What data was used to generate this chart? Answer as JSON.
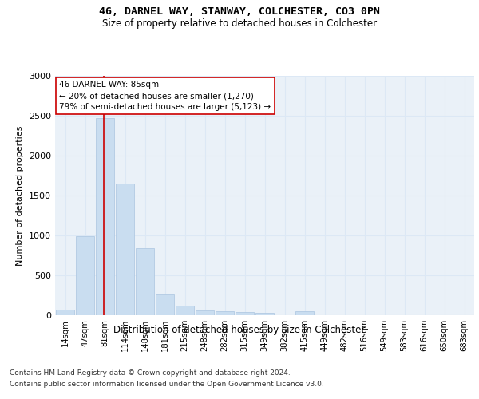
{
  "title1": "46, DARNEL WAY, STANWAY, COLCHESTER, CO3 0PN",
  "title2": "Size of property relative to detached houses in Colchester",
  "xlabel": "Distribution of detached houses by size in Colchester",
  "ylabel": "Number of detached properties",
  "bar_labels": [
    "14sqm",
    "47sqm",
    "81sqm",
    "114sqm",
    "148sqm",
    "181sqm",
    "215sqm",
    "248sqm",
    "282sqm",
    "315sqm",
    "349sqm",
    "382sqm",
    "415sqm",
    "449sqm",
    "482sqm",
    "516sqm",
    "549sqm",
    "583sqm",
    "616sqm",
    "650sqm",
    "683sqm"
  ],
  "bar_values": [
    75,
    990,
    2470,
    1650,
    840,
    260,
    120,
    65,
    50,
    45,
    35,
    0,
    55,
    0,
    0,
    0,
    0,
    0,
    0,
    0,
    0
  ],
  "bar_color": "#c9ddf0",
  "bar_edge_color": "#aac4e0",
  "grid_color": "#dce8f5",
  "background_color": "#eaf1f8",
  "vline_color": "#cc0000",
  "annotation_text": "46 DARNEL WAY: 85sqm\n← 20% of detached houses are smaller (1,270)\n79% of semi-detached houses are larger (5,123) →",
  "annotation_box_color": "#ffffff",
  "annotation_box_edge": "#cc0000",
  "ylim": [
    0,
    3000
  ],
  "yticks": [
    0,
    500,
    1000,
    1500,
    2000,
    2500,
    3000
  ],
  "footer1": "Contains HM Land Registry data © Crown copyright and database right 2024.",
  "footer2": "Contains public sector information licensed under the Open Government Licence v3.0."
}
